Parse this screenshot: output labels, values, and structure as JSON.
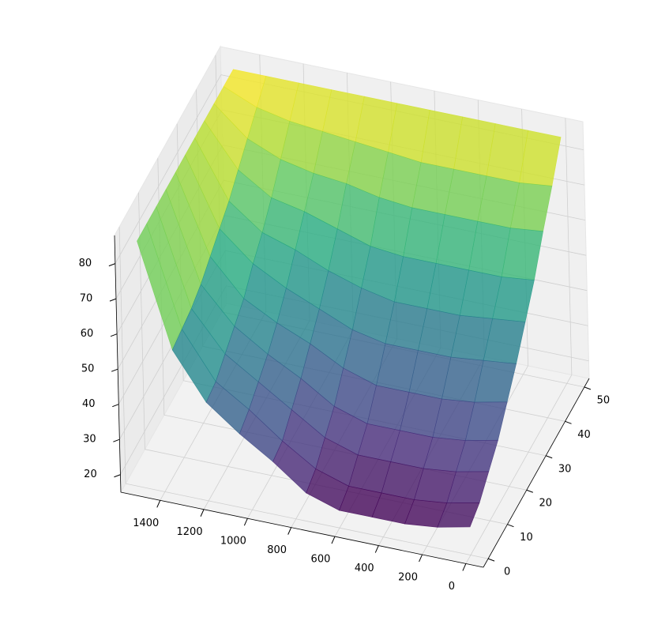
{
  "chart_data": {
    "type": "surface3d",
    "cmap": "viridis",
    "alpha": 0.8,
    "grid": true,
    "x": [
      0,
      150,
      300,
      450,
      600,
      750,
      900,
      1050,
      1200,
      1350,
      1500
    ],
    "y": [
      0,
      5,
      10,
      15,
      20,
      25,
      30,
      35,
      40,
      45,
      50
    ],
    "z": [
      [
        23,
        21,
        20,
        20,
        20,
        23,
        30,
        36,
        43,
        56,
        85
      ],
      [
        25,
        23,
        22,
        22,
        22,
        25,
        31,
        38,
        44,
        57,
        85
      ],
      [
        29,
        27,
        26,
        26,
        26,
        29,
        35,
        41,
        47,
        58,
        85
      ],
      [
        33,
        31,
        30,
        30,
        30,
        33,
        39,
        44,
        50,
        60,
        85
      ],
      [
        39,
        37,
        36,
        36,
        36,
        39,
        44,
        48,
        53,
        63,
        85
      ],
      [
        45,
        44,
        43,
        43,
        43,
        45,
        49,
        53,
        58,
        66,
        85
      ],
      [
        52,
        51,
        50,
        50,
        50,
        52,
        55,
        59,
        62,
        69,
        85
      ],
      [
        59,
        58,
        58,
        58,
        58,
        59,
        62,
        65,
        67,
        73,
        85
      ],
      [
        68,
        67,
        67,
        67,
        67,
        68,
        70,
        71,
        73,
        77,
        85
      ],
      [
        76,
        75,
        75,
        75,
        75,
        76,
        77,
        78,
        79,
        81,
        85
      ],
      [
        85,
        85,
        85,
        85,
        85,
        85,
        85,
        85,
        85,
        85,
        85
      ]
    ],
    "xlim": [
      -80,
      1580
    ],
    "ylim": [
      -2.5,
      52.5
    ],
    "zlim": [
      15,
      88
    ],
    "xticks": [
      0,
      200,
      400,
      600,
      800,
      1000,
      1200,
      1400
    ],
    "yticks": [
      0,
      10,
      20,
      30,
      40,
      50
    ],
    "zticks": [
      20,
      30,
      40,
      50,
      60,
      70,
      80
    ]
  }
}
